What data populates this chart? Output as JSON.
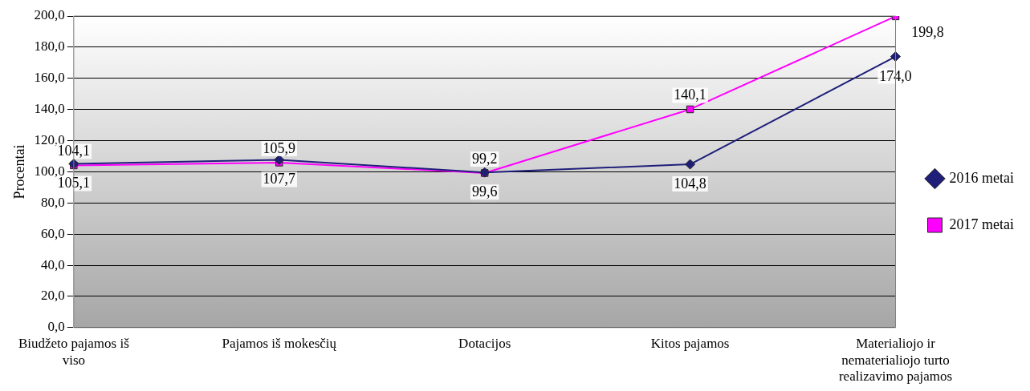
{
  "chart_data": {
    "type": "line",
    "ylabel": "Procentai",
    "categories": [
      "Biudžeto pajamos iš viso",
      "Pajamos iš mokesčių",
      "Dotacijos",
      "Kitos pajamos",
      "Materialiojo ir nematerialiojo turto realizavimo pajamos"
    ],
    "series": [
      {
        "name": "2016 metai",
        "color": "#1f1f7a",
        "marker": "diamond",
        "values": [
          105.1,
          107.7,
          99.6,
          104.8,
          174.0
        ],
        "value_labels": [
          "105,1",
          "107,7",
          "99,6",
          "104,8",
          "174,0"
        ]
      },
      {
        "name": "2017 metai",
        "color": "#ff00ff",
        "marker": "square",
        "values": [
          104.1,
          105.9,
          99.2,
          140.1,
          199.8
        ],
        "value_labels": [
          "104,1",
          "105,9",
          "99,2",
          "140,1",
          "199,8"
        ]
      }
    ],
    "ylim": [
      0,
      200
    ],
    "yticks": [
      {
        "value": 0,
        "label": "0,0"
      },
      {
        "value": 20,
        "label": "20,0"
      },
      {
        "value": 40,
        "label": "40,0"
      },
      {
        "value": 60,
        "label": "60,0"
      },
      {
        "value": 80,
        "label": "80,0"
      },
      {
        "value": 100,
        "label": "100,0"
      },
      {
        "value": 120,
        "label": "120,0"
      },
      {
        "value": 140,
        "label": "140,0"
      },
      {
        "value": 160,
        "label": "160,0"
      },
      {
        "value": 180,
        "label": "180,0"
      },
      {
        "value": 200,
        "label": "200,0"
      }
    ],
    "grid": "y",
    "legend": "right",
    "line_style": "solid"
  }
}
